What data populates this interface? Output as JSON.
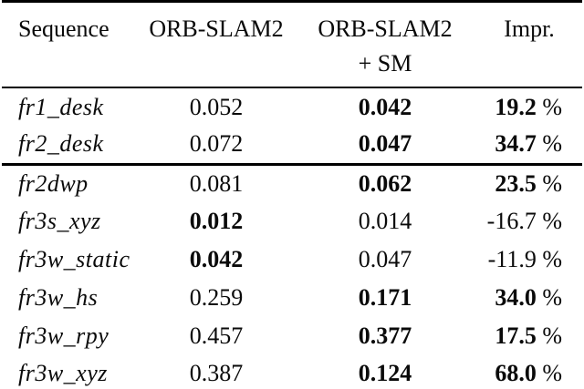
{
  "table": {
    "headers": {
      "sequence": "Sequence",
      "orb": "ORB-SLAM2",
      "orb_sm_line1": "ORB-SLAM2",
      "orb_sm_line2": "+ SM",
      "impr": "Impr."
    },
    "percent_sign": "%",
    "rows": [
      {
        "sequence": "fr1_desk",
        "orb": "0.052",
        "orb_bold": false,
        "sm": "0.042",
        "sm_bold": true,
        "impr": "19.2",
        "impr_bold": true,
        "rule_above": false
      },
      {
        "sequence": "fr2_desk",
        "orb": "0.072",
        "orb_bold": false,
        "sm": "0.047",
        "sm_bold": true,
        "impr": "34.7",
        "impr_bold": true,
        "rule_above": false
      },
      {
        "sequence": "fr2dwp",
        "orb": "0.081",
        "orb_bold": false,
        "sm": "0.062",
        "sm_bold": true,
        "impr": "23.5",
        "impr_bold": true,
        "rule_above": true
      },
      {
        "sequence": "fr3s_xyz",
        "orb": "0.012",
        "orb_bold": true,
        "sm": "0.014",
        "sm_bold": false,
        "impr": "-16.7",
        "impr_bold": false,
        "rule_above": false
      },
      {
        "sequence": "fr3w_static",
        "orb": "0.042",
        "orb_bold": true,
        "sm": "0.047",
        "sm_bold": false,
        "impr": "-11.9",
        "impr_bold": false,
        "rule_above": false
      },
      {
        "sequence": "fr3w_hs",
        "orb": "0.259",
        "orb_bold": false,
        "sm": "0.171",
        "sm_bold": true,
        "impr": "34.0",
        "impr_bold": true,
        "rule_above": false
      },
      {
        "sequence": "fr3w_rpy",
        "orb": "0.457",
        "orb_bold": false,
        "sm": "0.377",
        "sm_bold": true,
        "impr": "17.5",
        "impr_bold": true,
        "rule_above": false
      },
      {
        "sequence": "fr3w_xyz",
        "orb": "0.387",
        "orb_bold": false,
        "sm": "0.124",
        "sm_bold": true,
        "impr": "68.0",
        "impr_bold": true,
        "rule_above": false
      }
    ]
  }
}
